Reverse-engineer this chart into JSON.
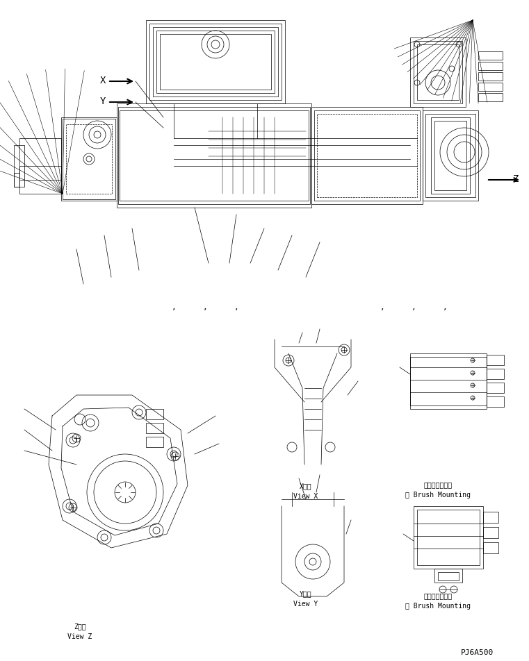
{
  "bg_color": "#ffffff",
  "line_color": "#000000",
  "title_code": "PJ6A500",
  "view_z_label": [
    "Z　視",
    "View Z"
  ],
  "view_x_label": [
    "X　視",
    "View X"
  ],
  "view_y_label": [
    "Y　視",
    "View Y"
  ],
  "brush_mount_x_label": [
    "ⓒブラシ取付法",
    "ⓒ Brush Mounting"
  ],
  "brush_mount_y_label": [
    "④ブラシ取付法",
    "④ Brush Mounting"
  ],
  "x_arrow_label": "X",
  "y_arrow_label": "Y",
  "z_arrow_label": "Z",
  "font_size_label": 7,
  "font_size_title": 8
}
